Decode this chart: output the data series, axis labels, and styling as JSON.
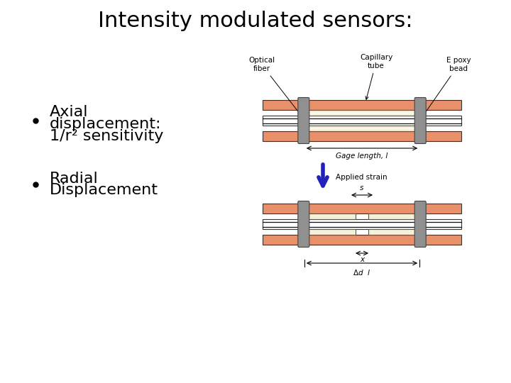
{
  "title": "Intensity modulated sensors:",
  "bullet1_line1": "Axial",
  "bullet1_line2": "displacement:",
  "bullet1_line3": "1/r² sensitivity",
  "bullet2_line1": "Radial",
  "bullet2_line2": "Displacement",
  "bg_color": "#ffffff",
  "title_fontsize": 22,
  "bullet_fontsize": 16,
  "fiber_color": "#E8906A",
  "capillary_color": "#F5F0D8",
  "connector_color": "#909090",
  "arrow_color": "#2222BB",
  "label_fontsize": 7.5
}
